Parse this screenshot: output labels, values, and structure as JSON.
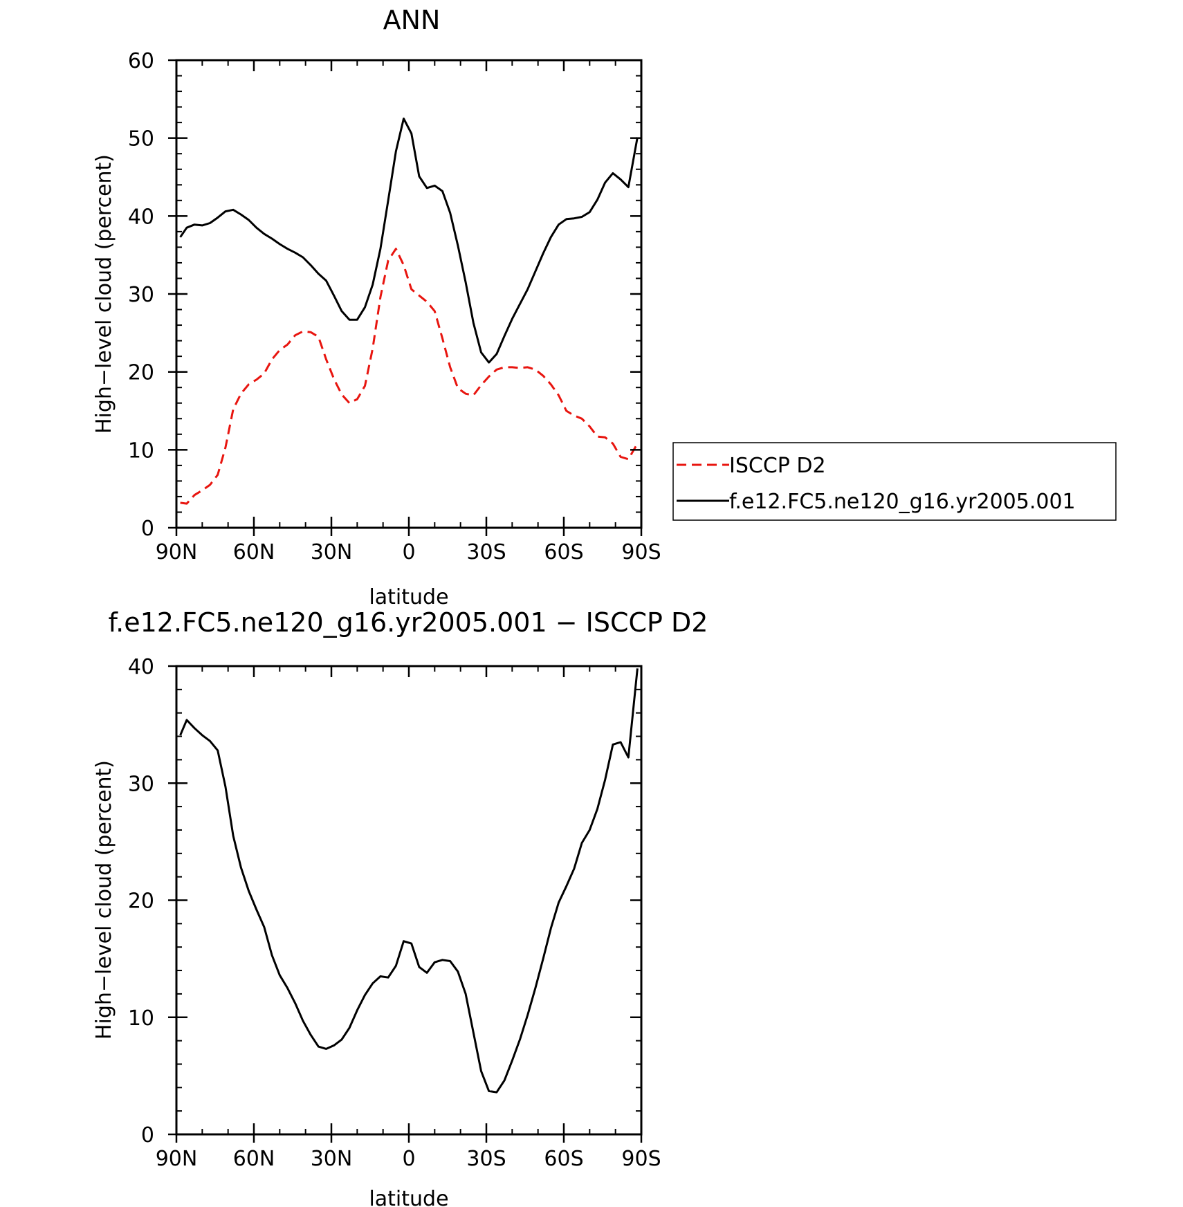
{
  "chart_data": [
    {
      "type": "line",
      "title": "ANN",
      "xlabel": "latitude",
      "ylabel": "High−level cloud (percent)",
      "xlim": [
        90,
        -90
      ],
      "ylim": [
        0,
        60
      ],
      "x_ticks": [
        90,
        60,
        30,
        0,
        -30,
        -60,
        -90
      ],
      "x_tick_labels": [
        "90N",
        "60N",
        "30N",
        "0",
        "30S",
        "60S",
        "90S"
      ],
      "y_ticks": [
        0,
        10,
        20,
        30,
        40,
        50,
        60
      ],
      "y_tick_labels": [
        "0",
        "10",
        "20",
        "30",
        "40",
        "50",
        "60"
      ],
      "grid": false,
      "legend_position": "right",
      "series": [
        {
          "name": "ISCCP D2",
          "color": "#e8150f",
          "dash": "dashed",
          "x": [
            88.5,
            86,
            83,
            80,
            77,
            74,
            71,
            68,
            65,
            62,
            59,
            56,
            53,
            50,
            47,
            44,
            41,
            38,
            35,
            32,
            29,
            26,
            23,
            20,
            17,
            14,
            11,
            8,
            5,
            2,
            -1,
            -4,
            -7,
            -10,
            -13,
            -16,
            -19,
            -22,
            -25,
            -28,
            -31,
            -34,
            -37,
            -40,
            -43,
            -46,
            -49,
            -52,
            -55,
            -58,
            -61,
            -64,
            -67,
            -70,
            -73,
            -76,
            -79,
            -82,
            -85,
            -88.5
          ],
          "y": [
            3.2,
            3.1,
            4.2,
            4.8,
            5.5,
            6.8,
            10.3,
            15.2,
            17.2,
            18.4,
            19.0,
            19.8,
            21.6,
            22.8,
            23.5,
            24.7,
            25.2,
            25.1,
            24.5,
            21.6,
            19.1,
            17.1,
            16.0,
            16.5,
            18.2,
            23.0,
            29.6,
            34.3,
            35.8,
            33.7,
            30.6,
            29.8,
            29.0,
            27.8,
            24.3,
            20.6,
            17.9,
            17.2,
            17.0,
            18.3,
            19.4,
            20.3,
            20.6,
            20.6,
            20.5,
            20.6,
            20.3,
            19.5,
            18.4,
            17.0,
            15.0,
            14.4,
            14.0,
            13.0,
            11.7,
            11.6,
            10.8,
            9.1,
            8.8,
            10.8
          ]
        },
        {
          "name": "f.e12.FC5.ne120_g16.yr2005.001",
          "color": "#000000",
          "dash": "solid",
          "x": [
            88.5,
            86,
            83,
            80,
            77,
            74,
            71,
            68,
            65,
            62,
            59,
            56,
            53,
            50,
            47,
            44,
            41,
            38,
            35,
            32,
            29,
            26,
            23,
            20,
            17,
            14,
            11,
            8,
            5,
            2,
            -1,
            -4,
            -7,
            -10,
            -13,
            -16,
            -19,
            -22,
            -25,
            -28,
            -31,
            -34,
            -37,
            -40,
            -43,
            -46,
            -49,
            -52,
            -55,
            -58,
            -61,
            -64,
            -67,
            -70,
            -73,
            -76,
            -79,
            -82,
            -85,
            -88.5
          ],
          "y": [
            37.3,
            38.5,
            38.9,
            38.8,
            39.1,
            39.8,
            40.6,
            40.8,
            40.2,
            39.5,
            38.5,
            37.7,
            37.1,
            36.4,
            35.8,
            35.3,
            34.7,
            33.7,
            32.6,
            31.7,
            29.8,
            27.8,
            26.7,
            26.7,
            28.3,
            31.2,
            35.8,
            42.0,
            48.3,
            52.5,
            50.6,
            45.1,
            43.6,
            43.9,
            43.2,
            40.4,
            36.2,
            31.5,
            26.3,
            22.5,
            21.2,
            22.3,
            24.6,
            26.8,
            28.7,
            30.6,
            32.9,
            35.2,
            37.3,
            38.9,
            39.6,
            39.7,
            39.9,
            40.5,
            42.1,
            44.3,
            45.5,
            44.7,
            43.7,
            50.1
          ]
        }
      ]
    },
    {
      "type": "line",
      "title": "f.e12.FC5.ne120_g16.yr2005.001 − ISCCP D2",
      "xlabel": "latitude",
      "ylabel": "High−level cloud (percent)",
      "xlim": [
        90,
        -90
      ],
      "ylim": [
        0,
        40
      ],
      "x_ticks": [
        90,
        60,
        30,
        0,
        -30,
        -60,
        -90
      ],
      "x_tick_labels": [
        "90N",
        "60N",
        "30N",
        "0",
        "30S",
        "60S",
        "90S"
      ],
      "y_ticks": [
        0,
        10,
        20,
        30,
        40
      ],
      "y_tick_labels": [
        "0",
        "10",
        "20",
        "30",
        "40"
      ],
      "grid": false,
      "series": [
        {
          "color": "#000000",
          "dash": "solid",
          "x": [
            88.5,
            86,
            83,
            80,
            77,
            74,
            71,
            68,
            65,
            62,
            59,
            56,
            53,
            50,
            47,
            44,
            41,
            38,
            35,
            32,
            29,
            26,
            23,
            20,
            17,
            14,
            11,
            8,
            5,
            2,
            -1,
            -4,
            -7,
            -10,
            -13,
            -16,
            -19,
            -22,
            -25,
            -28,
            -31,
            -34,
            -37,
            -40,
            -43,
            -46,
            -49,
            -52,
            -55,
            -58,
            -61,
            -64,
            -67,
            -70,
            -73,
            -76,
            -79,
            -82,
            -85,
            -88.5
          ],
          "y": [
            34.1,
            35.4,
            34.7,
            34.1,
            33.6,
            32.8,
            29.7,
            25.5,
            22.8,
            20.8,
            19.2,
            17.7,
            15.3,
            13.6,
            12.5,
            11.2,
            9.7,
            8.5,
            7.5,
            7.3,
            7.6,
            8.1,
            9.1,
            10.6,
            11.9,
            12.9,
            13.5,
            13.4,
            14.4,
            16.5,
            16.3,
            14.3,
            13.8,
            14.7,
            14.9,
            14.8,
            13.9,
            12.0,
            8.7,
            5.4,
            3.7,
            3.6,
            4.6,
            6.3,
            8.1,
            10.2,
            12.5,
            15.0,
            17.6,
            19.8,
            21.2,
            22.7,
            24.9,
            26.0,
            27.8,
            30.3,
            33.3,
            33.5,
            32.2,
            39.8
          ]
        }
      ]
    }
  ]
}
